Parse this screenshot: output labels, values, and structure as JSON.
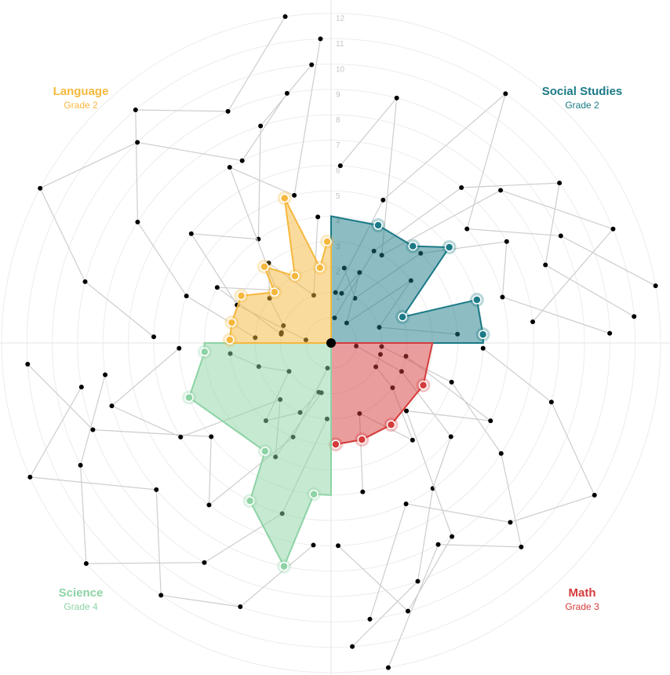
{
  "chart_data": {
    "type": "radial-area",
    "rlim": [
      0,
      12
    ],
    "rticks": [
      1,
      2,
      3,
      4,
      5,
      6,
      7,
      8,
      9,
      10,
      11,
      12
    ],
    "xlim": [
      0,
      90
    ],
    "series": [
      {
        "name": "Social Studies",
        "grade": "Grade 2",
        "color": "#1b7a86",
        "x": [
          21.8,
          40.2,
          51,
          70,
          73.5,
          86.8
        ],
        "values": [
          4,
          4,
          5,
          2,
          5,
          5
        ],
        "others": [
          {
            "x": [
              5,
              20,
              35,
              50,
              65,
              80
            ],
            "values": [
              1,
              5,
              11,
              6,
              9,
              12
            ]
          },
          {
            "x": [
              8,
              25,
              40,
              55,
              70,
              85
            ],
            "values": [
              0,
              3,
              7,
              10,
              8,
              11
            ]
          },
          {
            "x": [
              10,
              28,
              45,
              60,
              75,
              88
            ],
            "values": [
              2,
              1,
              4,
              7,
              6,
              10
            ]
          },
          {
            "x": [
              3,
              15,
              30,
              48,
              68,
              84
            ],
            "values": [
              6,
              9,
              3,
              8,
              11,
              7
            ]
          },
          {
            "x": [
              12,
              22,
              38,
              52,
              72,
              86
            ],
            "values": [
              1,
              2,
              0,
              3,
              1,
              4
            ]
          }
        ]
      },
      {
        "name": "Math",
        "grade": "Grade 3",
        "color": "#d63b3b",
        "x": [
          24.6,
          53.7,
          72.3,
          87.4
        ],
        "values": [
          3,
          3,
          3,
          3
        ],
        "others": [
          {
            "x": [
              4,
              18,
              33,
              47,
              62,
              80
            ],
            "values": [
              1,
              4,
              7,
              10,
              8,
              12
            ]
          },
          {
            "x": [
              7,
              22,
              38,
              55,
              70,
              86
            ],
            "values": [
              0,
              2,
              5,
              6,
              9,
              11
            ]
          },
          {
            "x": [
              10,
              26,
              42,
              58,
              74,
              88
            ],
            "values": [
              2,
              6,
              3,
              8,
              10,
              7
            ]
          },
          {
            "x": [
              2,
              15,
              30,
              45,
              65,
              82
            ],
            "values": [
              5,
              8,
              11,
              9,
              6,
              10
            ]
          },
          {
            "x": [
              13,
              28,
              36,
              50,
              68,
              78
            ],
            "values": [
              1,
              1,
              2,
              4,
              2,
              5
            ]
          }
        ]
      },
      {
        "name": "Science",
        "grade": "Grade 4",
        "color": "#8dd3a5",
        "x": [
          6.5,
          11.9,
          27.2,
          31.4,
          69,
          86
        ],
        "values": [
          5,
          8,
          6,
          4,
          5,
          4
        ],
        "others": [
          {
            "x": [
              3,
              16,
              30,
              48,
              64,
              82
            ],
            "values": [
              2,
              6,
              9,
              12,
              10,
              8
            ]
          },
          {
            "x": [
              8,
              22,
              37,
              52,
              70,
              86
            ],
            "values": [
              0,
              3,
              7,
              5,
              9,
              11
            ]
          },
          {
            "x": [
              11,
              26,
              42,
              58,
              74,
              88
            ],
            "values": [
              1,
              4,
              2,
              6,
              8,
              5
            ]
          },
          {
            "x": [
              5,
              19,
              34,
              50,
              66,
              80
            ],
            "values": [
              7,
              10,
              11,
              8,
              12,
              9
            ]
          },
          {
            "x": [
              14,
              24,
              40,
              56,
              72,
              84
            ],
            "values": [
              1,
              2,
              3,
              1,
              2,
              3
            ]
          }
        ]
      },
      {
        "name": "Language",
        "grade": "Grade 2",
        "color": "#f5b83d",
        "x": [
          1.8,
          11.6,
          27.7,
          42,
          48.8,
          61.6,
          72.2,
          81.6,
          87.8
        ],
        "values": [
          3,
          3,
          3,
          2,
          3,
          2,
          5,
          2,
          3
        ],
        "others": [
          {
            "x": [
              4,
              18,
              32,
              50,
              66,
              82
            ],
            "values": [
              2,
              5,
              8,
              11,
              9,
              12
            ]
          },
          {
            "x": [
              7,
              22,
              38,
              55,
              72,
              86
            ],
            "values": [
              0,
              3,
              6,
              4,
              8,
              10
            ]
          },
          {
            "x": [
              10,
              26,
              44,
              60,
              76,
              88
            ],
            "values": [
              1,
              4,
              2,
              7,
              5,
              11
            ]
          },
          {
            "x": [
              2,
              14,
              28,
              46,
              64,
              80
            ],
            "values": [
              6,
              9,
              12,
              10,
              7,
              9
            ]
          },
          {
            "x": [
              12,
              20,
              36,
              52,
              70,
              84
            ],
            "values": [
              1,
              1,
              2,
              3,
              1,
              4
            ]
          }
        ]
      }
    ]
  }
}
